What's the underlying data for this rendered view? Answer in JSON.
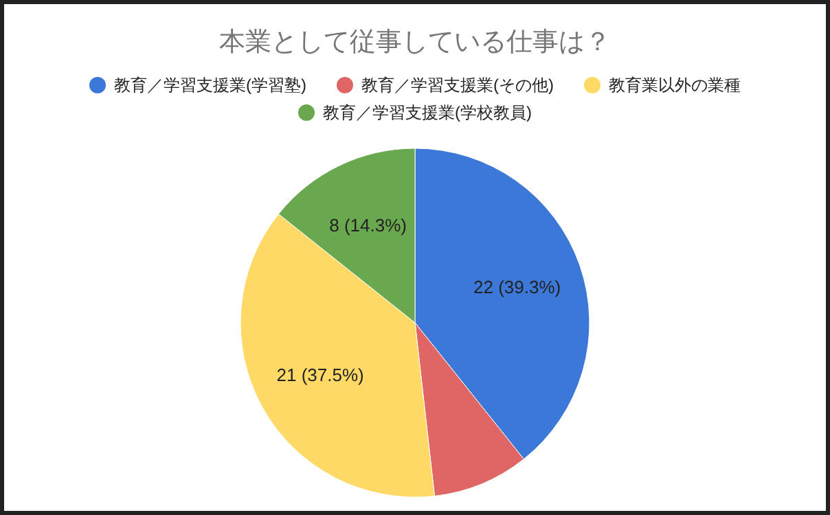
{
  "chart_data": {
    "type": "pie",
    "title": "本業として従事している仕事は？",
    "categories": [
      "教育／学習支援業(学習塾)",
      "教育／学習支援業(その他)",
      "教育業以外の業種",
      "教育／学習支援業(学校教員)"
    ],
    "values": [
      22,
      5,
      21,
      8
    ],
    "colors": [
      "#3c78d8",
      "#e06666",
      "#ffd966",
      "#6aa84f"
    ],
    "value_labels": [
      "22 (39.3%)",
      null,
      "21 (37.5%)",
      "8 (14.3%)"
    ],
    "legend": "top"
  }
}
